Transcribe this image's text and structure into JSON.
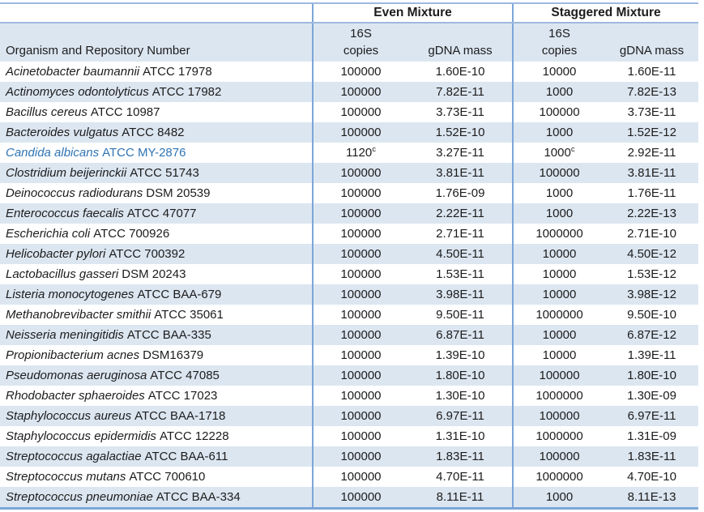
{
  "colors": {
    "row_band": "#DCE6F1",
    "border_light": "#9DB9DF",
    "border_dark": "#7CA6D8",
    "highlight_text": "#2E74B5",
    "text": "#1C1C1C"
  },
  "header": {
    "even_mixture": "Even Mixture",
    "staggered_mixture": "Staggered Mixture",
    "organism_column": "Organism and Repository Number",
    "copies_line1": "16S",
    "copies_line2": "copies",
    "gdna_mass": "gDNA mass"
  },
  "rows": [
    {
      "organism": "Acinetobacter baumannii",
      "repository": "ATCC 17978",
      "even_copies": "100000",
      "even_gdna_mass": "1.60E-10",
      "staggered_copies": "10000",
      "staggered_gdna_mass": "1.60E-11"
    },
    {
      "organism": "Actinomyces odontolyticus",
      "repository": "ATCC 17982",
      "even_copies": "100000",
      "even_gdna_mass": "7.82E-11",
      "staggered_copies": "1000",
      "staggered_gdna_mass": "7.82E-13"
    },
    {
      "organism": "Bacillus cereus",
      "repository": "ATCC 10987",
      "even_copies": "100000",
      "even_gdna_mass": "3.73E-11",
      "staggered_copies": "100000",
      "staggered_gdna_mass": "3.73E-11"
    },
    {
      "organism": "Bacteroides vulgatus",
      "repository": "ATCC 8482",
      "even_copies": "100000",
      "even_gdna_mass": "1.52E-10",
      "staggered_copies": "1000",
      "staggered_gdna_mass": "1.52E-12"
    },
    {
      "organism": "Candida albicans",
      "repository": "ATCC MY-2876",
      "highlight": true,
      "even_copies": "1120",
      "even_copies_sup": "c",
      "even_gdna_mass": "3.27E-11",
      "staggered_copies": "1000",
      "staggered_copies_sup": "c",
      "staggered_gdna_mass": "2.92E-11"
    },
    {
      "organism": "Clostridium beijerinckii",
      "repository": "ATCC 51743",
      "even_copies": "100000",
      "even_gdna_mass": "3.81E-11",
      "staggered_copies": "100000",
      "staggered_gdna_mass": "3.81E-11"
    },
    {
      "organism": "Deinococcus radiodurans",
      "repository": "DSM 20539",
      "even_copies": "100000",
      "even_gdna_mass": "1.76E-09",
      "staggered_copies": "1000",
      "staggered_gdna_mass": "1.76E-11"
    },
    {
      "organism": "Enterococcus faecalis",
      "repository": "ATCC 47077",
      "even_copies": "100000",
      "even_gdna_mass": "2.22E-11",
      "staggered_copies": "1000",
      "staggered_gdna_mass": "2.22E-13"
    },
    {
      "organism": "Escherichia coli",
      "repository": "ATCC 700926",
      "even_copies": "100000",
      "even_gdna_mass": "2.71E-11",
      "staggered_copies": "1000000",
      "staggered_gdna_mass": "2.71E-10"
    },
    {
      "organism": "Helicobacter pylori",
      "repository": "ATCC 700392",
      "even_copies": "100000",
      "even_gdna_mass": "4.50E-11",
      "staggered_copies": "10000",
      "staggered_gdna_mass": "4.50E-12"
    },
    {
      "organism": "Lactobacillus gasseri",
      "repository": "DSM 20243",
      "even_copies": "100000",
      "even_gdna_mass": "1.53E-11",
      "staggered_copies": "10000",
      "staggered_gdna_mass": "1.53E-12"
    },
    {
      "organism": "Listeria monocytogenes",
      "repository": "ATCC BAA-679",
      "even_copies": "100000",
      "even_gdna_mass": "3.98E-11",
      "staggered_copies": "10000",
      "staggered_gdna_mass": "3.98E-12"
    },
    {
      "organism": "Methanobrevibacter smithii",
      "repository": "ATCC 35061",
      "even_copies": "100000",
      "even_gdna_mass": "9.50E-11",
      "staggered_copies": "1000000",
      "staggered_gdna_mass": "9.50E-10"
    },
    {
      "organism": "Neisseria meningitidis",
      "repository": "ATCC BAA-335",
      "even_copies": "100000",
      "even_gdna_mass": "6.87E-11",
      "staggered_copies": "10000",
      "staggered_gdna_mass": "6.87E-12"
    },
    {
      "organism": "Propionibacterium acnes",
      "repository": "DSM16379",
      "even_copies": "100000",
      "even_gdna_mass": "1.39E-10",
      "staggered_copies": "10000",
      "staggered_gdna_mass": "1.39E-11"
    },
    {
      "organism": "Pseudomonas aeruginosa",
      "repository": "ATCC 47085",
      "even_copies": "100000",
      "even_gdna_mass": "1.80E-10",
      "staggered_copies": "100000",
      "staggered_gdna_mass": "1.80E-10"
    },
    {
      "organism": "Rhodobacter sphaeroides",
      "repository": "ATCC 17023",
      "even_copies": "100000",
      "even_gdna_mass": "1.30E-10",
      "staggered_copies": "1000000",
      "staggered_gdna_mass": "1.30E-09"
    },
    {
      "organism": "Staphylococcus aureus",
      "repository": "ATCC BAA-1718",
      "even_copies": "100000",
      "even_gdna_mass": "6.97E-11",
      "staggered_copies": "100000",
      "staggered_gdna_mass": "6.97E-11"
    },
    {
      "organism": "Staphylococcus epidermidis",
      "repository": "ATCC 12228",
      "even_copies": "100000",
      "even_gdna_mass": "1.31E-10",
      "staggered_copies": "1000000",
      "staggered_gdna_mass": "1.31E-09"
    },
    {
      "organism": "Streptococcus agalactiae",
      "repository": "ATCC BAA-611",
      "even_copies": "100000",
      "even_gdna_mass": "1.83E-11",
      "staggered_copies": "100000",
      "staggered_gdna_mass": "1.83E-11"
    },
    {
      "organism": "Streptococcus mutans",
      "repository": "ATCC 700610",
      "even_copies": "100000",
      "even_gdna_mass": "4.70E-11",
      "staggered_copies": "1000000",
      "staggered_gdna_mass": "4.70E-10"
    },
    {
      "organism": "Streptococcus pneumoniae",
      "repository": "ATCC BAA-334",
      "even_copies": "100000",
      "even_gdna_mass": "8.11E-11",
      "staggered_copies": "1000",
      "staggered_gdna_mass": "8.11E-13"
    }
  ]
}
